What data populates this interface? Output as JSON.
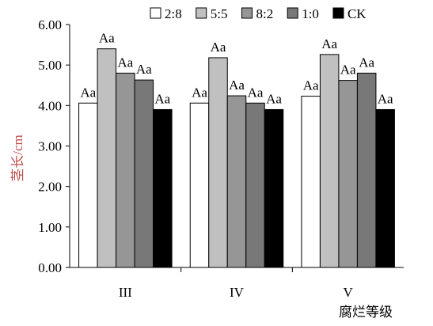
{
  "chart_data": {
    "type": "bar",
    "categories": [
      "III",
      "IV",
      "V"
    ],
    "series": [
      {
        "name": "2:8",
        "color": "#ffffff",
        "values": [
          4.06,
          4.06,
          4.23
        ],
        "labels": [
          "Aa",
          "Aa",
          "Aa"
        ]
      },
      {
        "name": "5:5",
        "color": "#c0c0c0",
        "values": [
          5.4,
          5.18,
          5.26
        ],
        "labels": [
          "Aa",
          "Aa",
          "Aa"
        ]
      },
      {
        "name": "8:2",
        "color": "#969696",
        "values": [
          4.8,
          4.24,
          4.62
        ],
        "labels": [
          "Aa",
          "Aa",
          "Aa"
        ]
      },
      {
        "name": "1:0",
        "color": "#787878",
        "values": [
          4.63,
          4.06,
          4.8
        ],
        "labels": [
          "Aa",
          "Aa",
          "Aa"
        ]
      },
      {
        "name": "CK",
        "color": "#000000",
        "values": [
          3.9,
          3.9,
          3.9
        ],
        "labels": [
          "Aa",
          "Aa",
          "Aa"
        ]
      }
    ],
    "yticks": [
      "0.00",
      "1.00",
      "2.00",
      "3.00",
      "4.00",
      "5.00",
      "6.00"
    ],
    "ylim": [
      0,
      6
    ],
    "ylabel": "茎长/cm",
    "xlabel": "腐烂等级",
    "legend_position": "top",
    "grid": false
  }
}
